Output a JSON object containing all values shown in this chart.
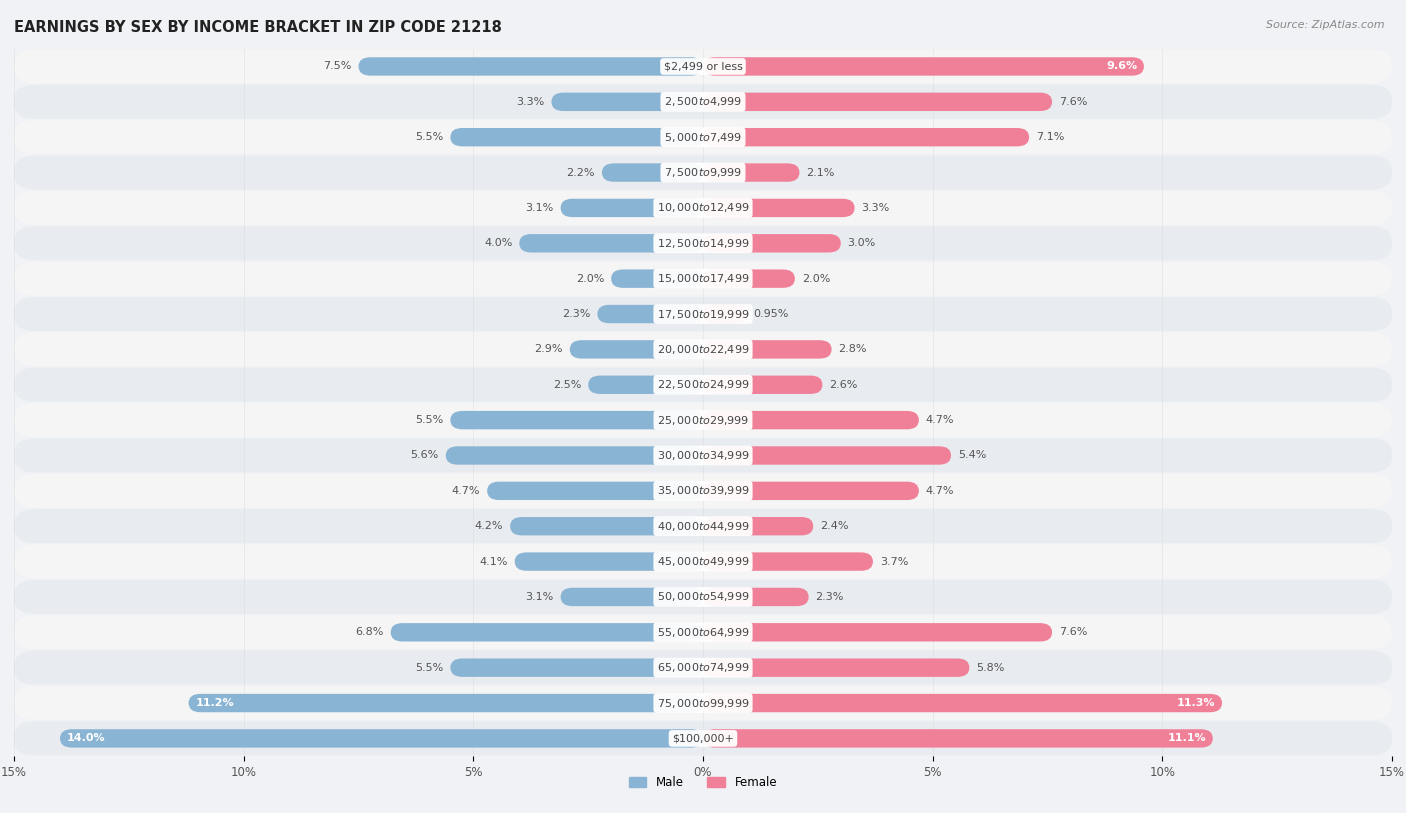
{
  "title": "EARNINGS BY SEX BY INCOME BRACKET IN ZIP CODE 21218",
  "source": "Source: ZipAtlas.com",
  "categories": [
    "$2,499 or less",
    "$2,500 to $4,999",
    "$5,000 to $7,499",
    "$7,500 to $9,999",
    "$10,000 to $12,499",
    "$12,500 to $14,999",
    "$15,000 to $17,499",
    "$17,500 to $19,999",
    "$20,000 to $22,499",
    "$22,500 to $24,999",
    "$25,000 to $29,999",
    "$30,000 to $34,999",
    "$35,000 to $39,999",
    "$40,000 to $44,999",
    "$45,000 to $49,999",
    "$50,000 to $54,999",
    "$55,000 to $64,999",
    "$65,000 to $74,999",
    "$75,000 to $99,999",
    "$100,000+"
  ],
  "male_values": [
    7.5,
    3.3,
    5.5,
    2.2,
    3.1,
    4.0,
    2.0,
    2.3,
    2.9,
    2.5,
    5.5,
    5.6,
    4.7,
    4.2,
    4.1,
    3.1,
    6.8,
    5.5,
    11.2,
    14.0
  ],
  "female_values": [
    9.6,
    7.6,
    7.1,
    2.1,
    3.3,
    3.0,
    2.0,
    0.95,
    2.8,
    2.6,
    4.7,
    5.4,
    4.7,
    2.4,
    3.7,
    2.3,
    7.6,
    5.8,
    11.3,
    11.1
  ],
  "male_color": "#8ab4d4",
  "female_color": "#f08098",
  "row_color_even": "#f5f5f5",
  "row_color_odd": "#e8ecf0",
  "bg_color": "#f0f2f5",
  "title_fontsize": 10.5,
  "source_fontsize": 8,
  "label_fontsize": 8,
  "category_fontsize": 8,
  "axis_label_fontsize": 8.5,
  "xlim": 15.0,
  "bar_height": 0.52,
  "inside_label_threshold": 8.0
}
